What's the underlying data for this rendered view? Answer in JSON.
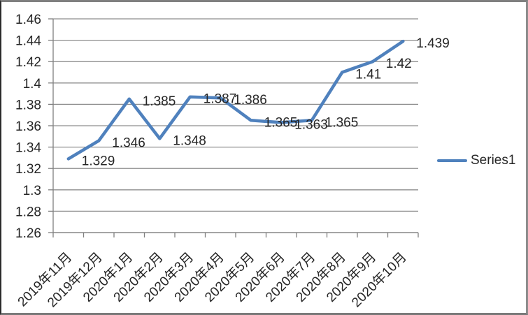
{
  "chart_data": {
    "type": "line",
    "categories": [
      "2019年11月",
      "2019年12月",
      "2020年1月",
      "2020年2月",
      "2020年3月",
      "2020年4月",
      "2020年5月",
      "2020年6月",
      "2020年7月",
      "2020年8月",
      "2020年9月",
      "2020年10月"
    ],
    "series": [
      {
        "name": "Series1",
        "values": [
          1.329,
          1.346,
          1.385,
          1.348,
          1.387,
          1.386,
          1.365,
          1.363,
          1.365,
          1.41,
          1.42,
          1.439
        ]
      }
    ],
    "data_labels": [
      "1.329",
      "1.346",
      "1.385",
      "1.348",
      "1.387",
      "1.386",
      "1.365",
      "1.363",
      "1.365",
      "1.41",
      "1.42",
      "1.439"
    ],
    "y_ticks": [
      "1.26",
      "1.28",
      "1.3",
      "1.32",
      "1.34",
      "1.36",
      "1.38",
      "1.4",
      "1.42",
      "1.44",
      "1.46"
    ],
    "ylim": [
      1.26,
      1.46
    ],
    "grid": true,
    "legend_position": "right",
    "colors": {
      "line": "#4F81BD",
      "gridline": "#8e8e8e",
      "axis": "#808080",
      "text": "#262626"
    }
  }
}
